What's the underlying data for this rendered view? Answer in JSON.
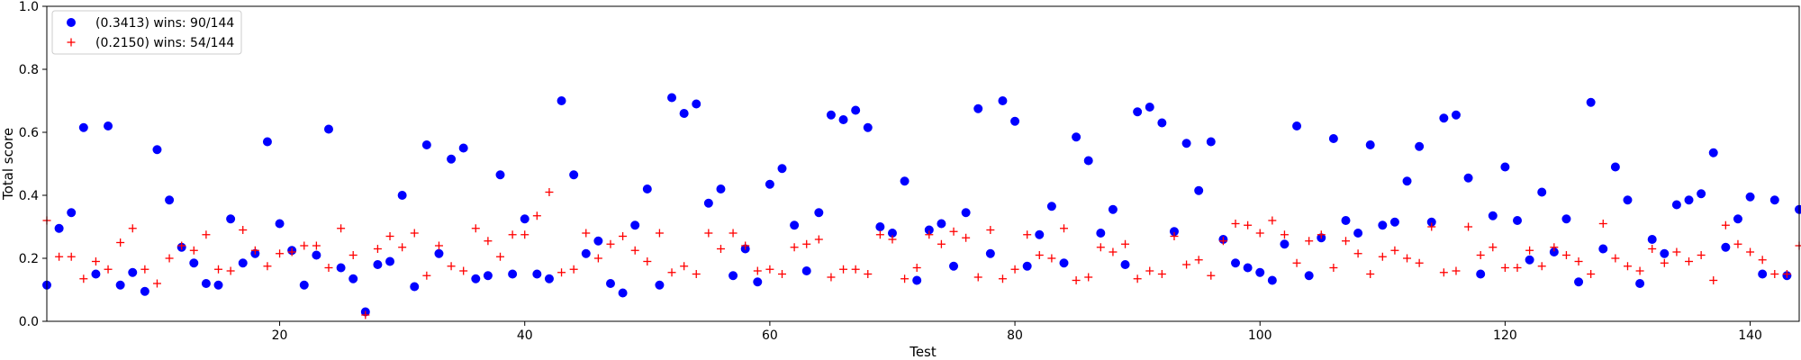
{
  "chart_data": {
    "type": "scatter",
    "title": "",
    "xlabel": "Test",
    "ylabel": "Total score",
    "xlim": [
      1,
      144
    ],
    "ylim": [
      0.0,
      1.0
    ],
    "xticks": [
      20,
      40,
      60,
      80,
      100,
      120,
      140
    ],
    "yticks": [
      0.0,
      0.2,
      0.4,
      0.6,
      0.8,
      1.0
    ],
    "ytick_labels": [
      "0.0",
      "0.2",
      "0.4",
      "0.6",
      "0.8",
      "1.0"
    ],
    "grid": false,
    "legend": "top-left",
    "series": [
      {
        "name": "(0.3413) wins: 90/144",
        "color": "#0000ff",
        "marker": "circle",
        "y": [
          0.115,
          0.295,
          0.345,
          0.615,
          0.15,
          0.62,
          0.115,
          0.155,
          0.095,
          0.545,
          0.385,
          0.235,
          0.185,
          0.12,
          0.115,
          0.325,
          0.185,
          0.215,
          0.57,
          0.31,
          0.225,
          0.115,
          0.21,
          0.61,
          0.17,
          0.135,
          0.03,
          0.18,
          0.19,
          0.4,
          0.11,
          0.56,
          0.215,
          0.515,
          0.55,
          0.135,
          0.145,
          0.465,
          0.15,
          0.325,
          0.15,
          0.135,
          0.7,
          0.465,
          0.215,
          0.255,
          0.12,
          0.09,
          0.305,
          0.42,
          0.115,
          0.71,
          0.66,
          0.69,
          0.375,
          0.42,
          0.145,
          0.23,
          0.125,
          0.435,
          0.485,
          0.305,
          0.16,
          0.345,
          0.655,
          0.64,
          0.67,
          0.615,
          0.3,
          0.28,
          0.445,
          0.13,
          0.29,
          0.31,
          0.175,
          0.345,
          0.675,
          0.215,
          0.7,
          0.635,
          0.175,
          0.275,
          0.365,
          0.185,
          0.585,
          0.51,
          0.28,
          0.355,
          0.18,
          0.665,
          0.68,
          0.63,
          0.285,
          0.565,
          0.415,
          0.57,
          0.26,
          0.185,
          0.17,
          0.155,
          0.13,
          0.245,
          0.62,
          0.145,
          0.265,
          0.58,
          0.32,
          0.28,
          0.56,
          0.305,
          0.315,
          0.445,
          0.555,
          0.315,
          0.645,
          0.655,
          0.455,
          0.15,
          0.335,
          0.49,
          0.32,
          0.195,
          0.41,
          0.22,
          0.325,
          0.125,
          0.695,
          0.23,
          0.49,
          0.385,
          0.12,
          0.26,
          0.215,
          0.37,
          0.385,
          0.405,
          0.535,
          0.235,
          0.325,
          0.395,
          0.15,
          0.385,
          0.145,
          0.355
        ]
      },
      {
        "name": "(0.2150) wins: 54/144",
        "color": "#ff0000",
        "marker": "plus",
        "y": [
          0.32,
          0.205,
          0.205,
          0.135,
          0.19,
          0.165,
          0.25,
          0.295,
          0.165,
          0.12,
          0.2,
          0.24,
          0.225,
          0.275,
          0.165,
          0.16,
          0.29,
          0.225,
          0.175,
          0.215,
          0.22,
          0.24,
          0.24,
          0.17,
          0.295,
          0.21,
          0.02,
          0.23,
          0.27,
          0.235,
          0.28,
          0.145,
          0.24,
          0.175,
          0.16,
          0.295,
          0.255,
          0.205,
          0.275,
          0.275,
          0.335,
          0.41,
          0.155,
          0.165,
          0.28,
          0.2,
          0.245,
          0.27,
          0.225,
          0.19,
          0.28,
          0.155,
          0.175,
          0.15,
          0.28,
          0.23,
          0.28,
          0.24,
          0.16,
          0.165,
          0.15,
          0.235,
          0.245,
          0.26,
          0.14,
          0.165,
          0.165,
          0.15,
          0.275,
          0.26,
          0.135,
          0.17,
          0.275,
          0.245,
          0.285,
          0.265,
          0.14,
          0.29,
          0.135,
          0.165,
          0.275,
          0.21,
          0.2,
          0.295,
          0.13,
          0.14,
          0.235,
          0.22,
          0.245,
          0.135,
          0.16,
          0.15,
          0.27,
          0.18,
          0.195,
          0.145,
          0.255,
          0.31,
          0.305,
          0.28,
          0.32,
          0.275,
          0.185,
          0.255,
          0.275,
          0.17,
          0.255,
          0.215,
          0.15,
          0.205,
          0.225,
          0.2,
          0.185,
          0.3,
          0.155,
          0.16,
          0.3,
          0.21,
          0.235,
          0.17,
          0.17,
          0.225,
          0.175,
          0.235,
          0.21,
          0.19,
          0.15,
          0.31,
          0.2,
          0.175,
          0.16,
          0.23,
          0.185,
          0.22,
          0.19,
          0.21,
          0.13,
          0.305,
          0.245,
          0.22,
          0.195,
          0.15,
          0.15,
          0.24
        ]
      }
    ]
  }
}
